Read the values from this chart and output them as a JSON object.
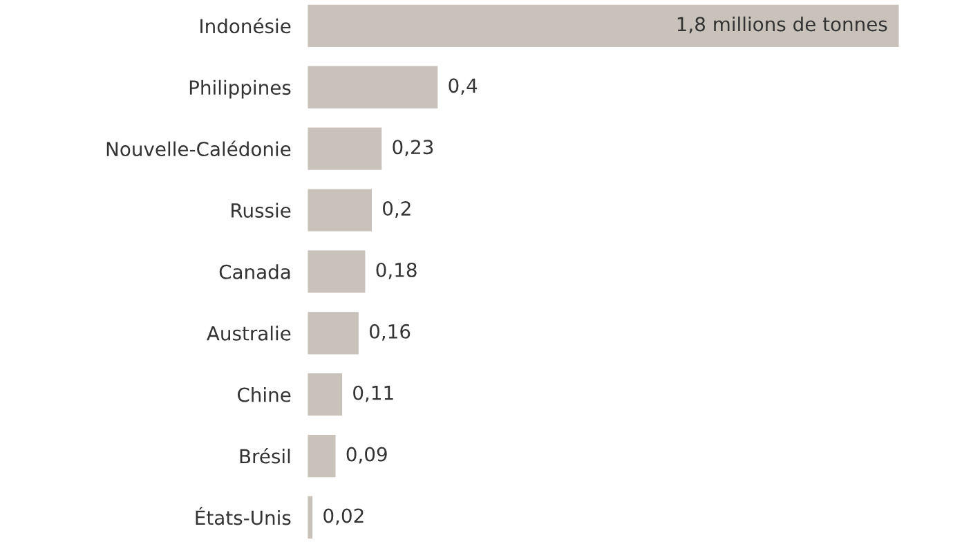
{
  "chart_data": {
    "type": "bar",
    "orientation": "horizontal",
    "categories": [
      "Indonésie",
      "Philippines",
      "Nouvelle-Calédonie",
      "Russie",
      "Canada",
      "Australie",
      "Chine",
      "Brésil",
      "États-Unis"
    ],
    "values": [
      1.8,
      0.4,
      0.23,
      0.2,
      0.18,
      0.16,
      0.11,
      0.09,
      0.02
    ],
    "value_labels": [
      "1,8 millions de tonnes",
      "0,4",
      "0,23",
      "0,2",
      "0,18",
      "0,16",
      "0,11",
      "0,09",
      "0,02"
    ],
    "color": "#c9c2ba",
    "tick_labels": "y",
    "grid": false,
    "legend": false
  }
}
